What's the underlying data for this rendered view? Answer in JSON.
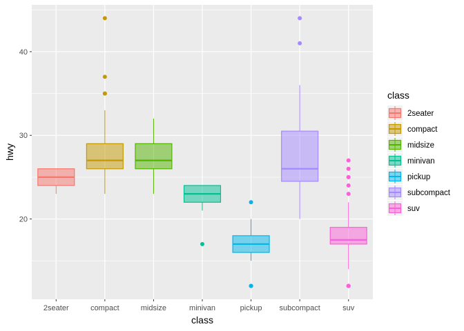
{
  "chart_data": {
    "type": "boxplot",
    "xlabel": "class",
    "ylabel": "hwy",
    "legend_title": "class",
    "legend_position": "right",
    "ylim": [
      10.4,
      45.6
    ],
    "yticks": [
      20,
      30,
      40
    ],
    "ytick_labels": [
      "20",
      "30",
      "40"
    ],
    "grid": true,
    "categories": [
      "2seater",
      "compact",
      "midsize",
      "minivan",
      "pickup",
      "subcompact",
      "suv"
    ],
    "series": [
      {
        "name": "2seater",
        "color": "#F8766D",
        "min": 23,
        "q1": 24,
        "median": 25,
        "q3": 26,
        "max": 26,
        "outliers": []
      },
      {
        "name": "compact",
        "color": "#C49A00",
        "min": 23,
        "q1": 26,
        "median": 27,
        "q3": 29,
        "max": 33,
        "outliers": [
          35,
          37,
          35,
          44
        ]
      },
      {
        "name": "midsize",
        "color": "#53B400",
        "min": 23,
        "q1": 26,
        "median": 27,
        "q3": 29,
        "max": 32,
        "outliers": []
      },
      {
        "name": "minivan",
        "color": "#00C094",
        "min": 21,
        "q1": 22,
        "median": 23,
        "q3": 24,
        "max": 24,
        "outliers": [
          17
        ]
      },
      {
        "name": "pickup",
        "color": "#00B6EB",
        "min": 15,
        "q1": 16,
        "median": 17,
        "q3": 18,
        "max": 20,
        "outliers": [
          12,
          12,
          12,
          22
        ]
      },
      {
        "name": "subcompact",
        "color": "#A58AFF",
        "min": 20,
        "q1": 24.5,
        "median": 26,
        "q3": 30.5,
        "max": 36,
        "outliers": [
          44,
          41
        ]
      },
      {
        "name": "suv",
        "color": "#FB61D7",
        "min": 14,
        "q1": 17,
        "median": 17.5,
        "q3": 19,
        "max": 22,
        "outliers": [
          12,
          12,
          12,
          12,
          23,
          24,
          25,
          26,
          27,
          25
        ]
      }
    ]
  }
}
